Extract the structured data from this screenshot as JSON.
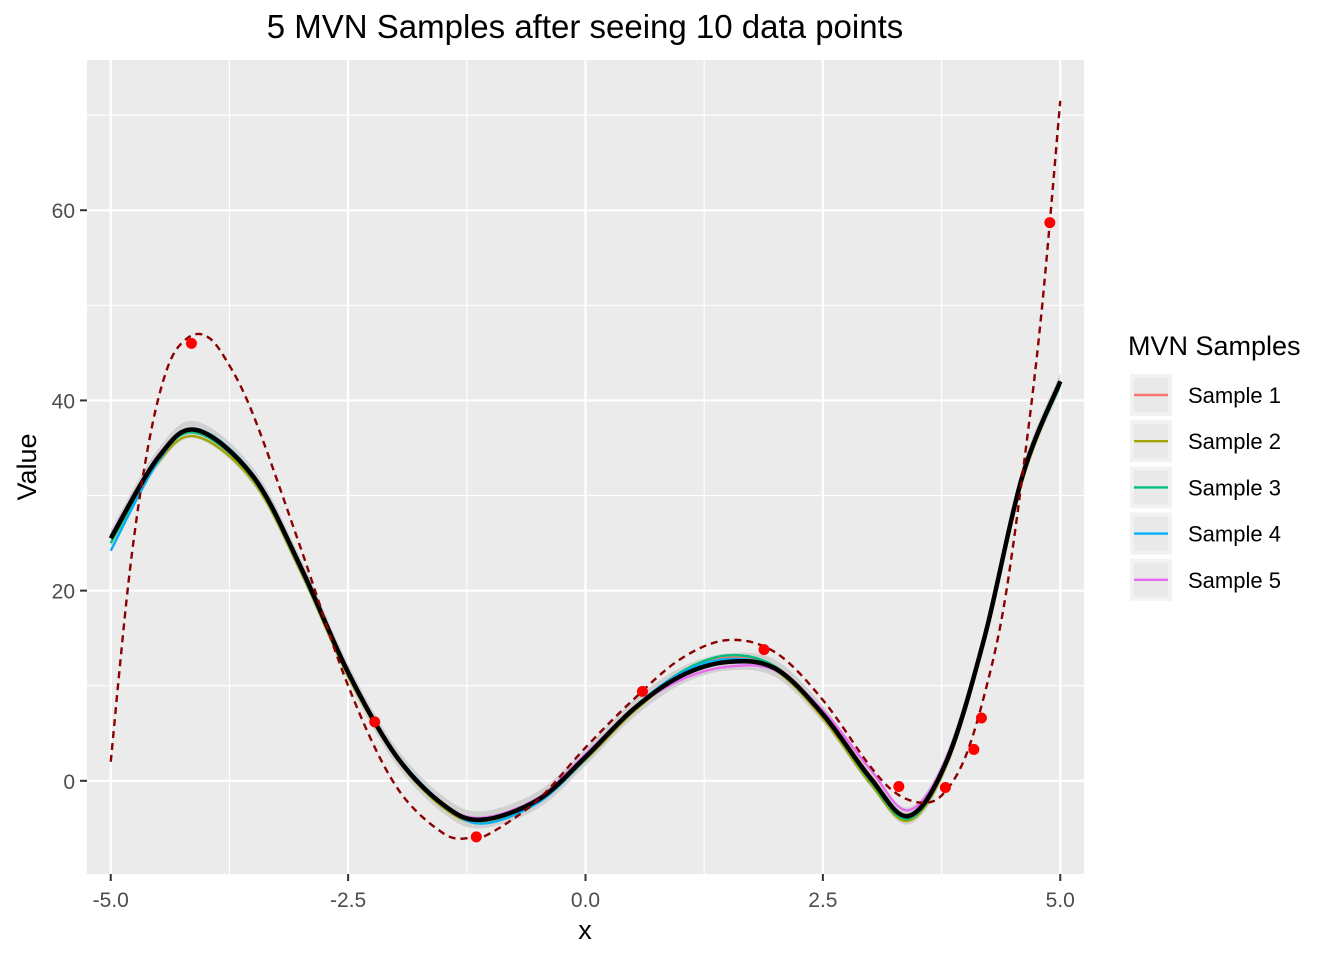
{
  "chart_data": {
    "type": "line",
    "title": "5 MVN Samples after seeing 10 data points",
    "xlabel": "x",
    "ylabel": "Value",
    "xlim": [
      -5.25,
      5.25
    ],
    "ylim": [
      -9.8,
      75.8
    ],
    "x_ticks": [
      -5.0,
      -2.5,
      0.0,
      2.5,
      5.0
    ],
    "x_tick_labels": [
      "-5.0",
      "-2.5",
      "0.0",
      "2.5",
      "5.0"
    ],
    "y_ticks": [
      0,
      20,
      40,
      60
    ],
    "y_tick_labels": [
      "0",
      "20",
      "40",
      "60"
    ],
    "grid": true,
    "legend": {
      "title": "MVN Samples",
      "position": "right",
      "entries": [
        {
          "name": "Sample 1",
          "color": "#F8766D"
        },
        {
          "name": "Sample 2",
          "color": "#A3A500"
        },
        {
          "name": "Sample 3",
          "color": "#00BF7D"
        },
        {
          "name": "Sample 4",
          "color": "#00B0F6"
        },
        {
          "name": "Sample 5",
          "color": "#E76BF3"
        }
      ]
    },
    "x": [
      -5.0,
      -4.5,
      -4.1,
      -3.5,
      -3.0,
      -2.5,
      -2.0,
      -1.5,
      -1.1,
      -0.5,
      0.0,
      0.5,
      1.0,
      1.5,
      2.0,
      2.5,
      3.0,
      3.4,
      3.8,
      4.2,
      4.6,
      5.0
    ],
    "series": [
      {
        "name": "Sample 1",
        "color": "#F8766D",
        "values": [
          25.5,
          34.0,
          36.8,
          32.0,
          22.5,
          11.5,
          2.8,
          -2.5,
          -4.0,
          -2.0,
          2.5,
          7.5,
          11.2,
          13.0,
          12.0,
          7.2,
          0.5,
          -3.8,
          2.0,
          15.0,
          32.0,
          42.0
        ]
      },
      {
        "name": "Sample 2",
        "color": "#A3A500",
        "values": [
          25.0,
          33.5,
          36.2,
          31.5,
          22.0,
          11.0,
          2.5,
          -2.8,
          -4.3,
          -2.2,
          2.2,
          7.2,
          11.0,
          12.8,
          11.6,
          6.6,
          -0.3,
          -4.2,
          1.6,
          14.6,
          31.5,
          41.8
        ]
      },
      {
        "name": "Sample 3",
        "color": "#00BF7D",
        "values": [
          25.0,
          33.8,
          36.6,
          31.8,
          22.2,
          11.2,
          2.6,
          -2.6,
          -4.2,
          -2.1,
          2.4,
          7.4,
          11.4,
          13.2,
          12.0,
          6.9,
          0.0,
          -4.0,
          1.8,
          14.8,
          31.8,
          41.6
        ]
      },
      {
        "name": "Sample 4",
        "color": "#00B0F6",
        "values": [
          24.2,
          33.6,
          37.0,
          32.2,
          22.6,
          11.6,
          2.9,
          -2.4,
          -4.5,
          -2.3,
          2.3,
          7.6,
          11.3,
          12.8,
          11.8,
          7.0,
          0.3,
          -3.6,
          2.1,
          15.2,
          32.1,
          41.9
        ]
      },
      {
        "name": "Sample 5",
        "color": "#E76BF3",
        "values": [
          25.8,
          34.2,
          36.9,
          32.1,
          22.4,
          11.4,
          2.7,
          -2.4,
          -3.9,
          -1.8,
          2.8,
          7.5,
          10.6,
          12.0,
          11.6,
          7.4,
          1.2,
          -3.1,
          2.4,
          15.4,
          32.2,
          42.1
        ]
      }
    ],
    "mean": {
      "values": [
        25.5,
        34.0,
        36.9,
        32.0,
        22.5,
        11.4,
        2.7,
        -2.5,
        -4.1,
        -2.0,
        2.5,
        7.5,
        11.0,
        12.5,
        11.8,
        7.0,
        0.3,
        -3.7,
        2.0,
        15.0,
        32.0,
        42.0
      ],
      "color": "#000000"
    },
    "true_function": {
      "color": "#8B0000",
      "dashed": true,
      "x": [
        -5.0,
        -4.8,
        -4.6,
        -4.4,
        -4.2,
        -4.0,
        -3.8,
        -3.5,
        -3.0,
        -2.5,
        -2.0,
        -1.5,
        -1.2,
        -1.0,
        -0.5,
        0.0,
        0.5,
        1.0,
        1.5,
        2.0,
        2.5,
        3.0,
        3.3,
        3.6,
        3.8,
        4.0,
        4.2,
        4.4,
        4.6,
        4.8,
        5.0
      ],
      "values": [
        2.0,
        22.0,
        35.5,
        43.5,
        46.5,
        46.8,
        44.5,
        38.5,
        24.5,
        10.0,
        -0.5,
        -5.5,
        -6.0,
        -5.5,
        -2.0,
        3.5,
        8.5,
        12.8,
        14.8,
        13.5,
        8.5,
        1.5,
        -1.5,
        -2.3,
        -1.0,
        2.5,
        9.0,
        18.0,
        32.0,
        49.0,
        71.5
      ]
    },
    "data_points": {
      "color": "#FF0000",
      "x": [
        -4.15,
        -2.22,
        -1.15,
        0.6,
        1.88,
        3.3,
        3.79,
        4.09,
        4.17,
        4.89
      ],
      "y": [
        46.0,
        6.2,
        -5.9,
        9.4,
        13.8,
        -0.6,
        -0.7,
        3.3,
        6.6,
        58.7
      ]
    }
  }
}
